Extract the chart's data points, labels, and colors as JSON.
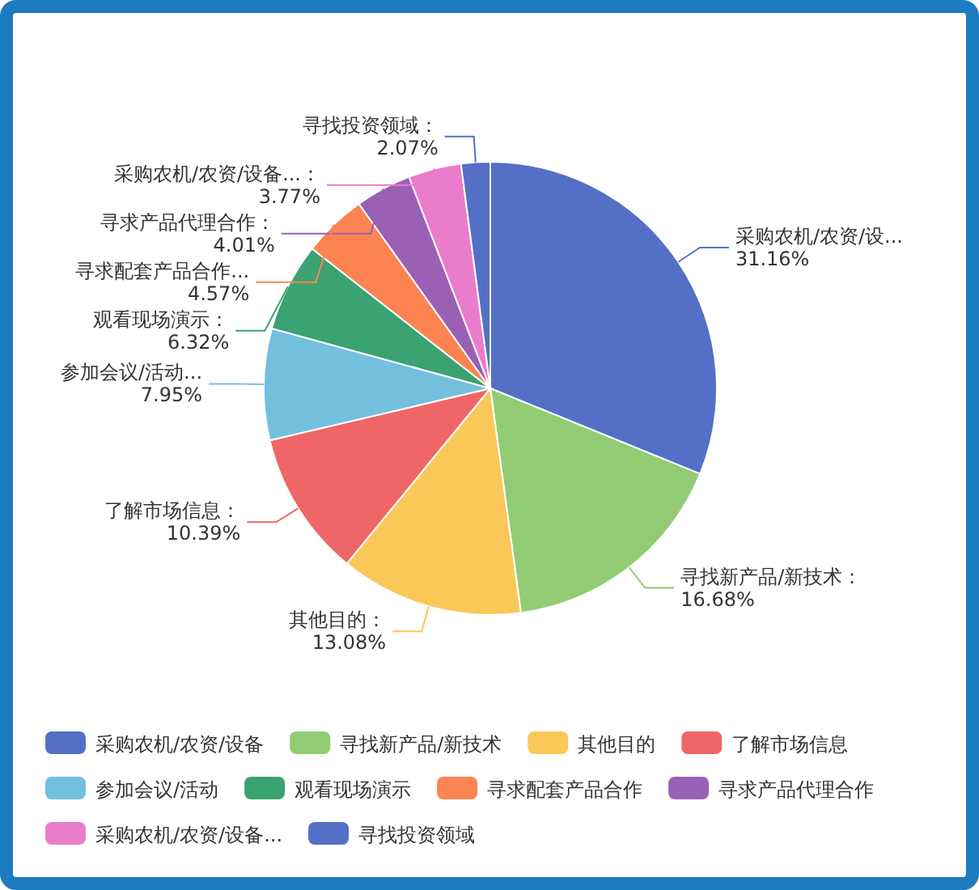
{
  "chart_data": {
    "type": "pie",
    "categories": [
      "采购农机/农资/设备",
      "寻找新产品/新技术",
      "其他目的",
      "了解市场信息",
      "参加会议/活动",
      "观看现场演示",
      "寻求配套产品合作",
      "寻求产品代理合作",
      "采购农机/农资/设备...",
      "寻找投资领域"
    ],
    "values": [
      31.16,
      16.68,
      13.08,
      10.39,
      7.95,
      6.32,
      4.57,
      4.01,
      3.77,
      2.07
    ],
    "colors": [
      "#5470c6",
      "#91cc75",
      "#fac858",
      "#ee6666",
      "#73c0de",
      "#3ba272",
      "#fc8452",
      "#9a60b4",
      "#ea7ccc",
      "#5470c6"
    ],
    "value_labels": [
      "采购农机/农资/设...\n31.16%",
      "寻找新产品/新技术：\n16.68%",
      "其他目的：\n13.08%",
      "了解市场信息：\n10.39%",
      "参加会议/活动...\n7.95%",
      "观看现场演示：\n6.32%",
      "寻求配套产品合作...\n4.57%",
      "寻求产品代理合作：\n4.01%",
      "采购农机/农资/设备...：\n3.77%",
      "寻找投资领域：\n2.07%"
    ],
    "legend": "bottom"
  }
}
